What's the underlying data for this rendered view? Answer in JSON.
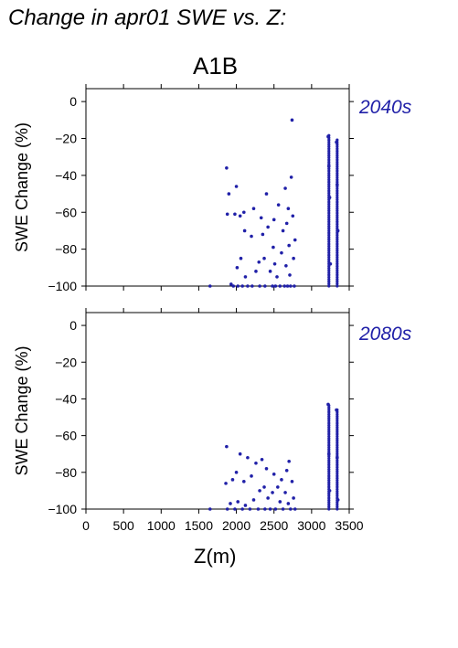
{
  "page_title": "Change in apr01 SWE vs. Z:",
  "scenario": "A1B",
  "colors": {
    "points": "#2020a8",
    "label": "#2020a8",
    "axis": "#000000"
  },
  "chart_data": [
    {
      "type": "scatter",
      "title": "2040s",
      "xlabel": "Z(m)",
      "ylabel": "SWE Change (%)",
      "xlim": [
        0,
        3500
      ],
      "ylim": [
        -100,
        7
      ],
      "xticks": [
        0,
        500,
        1000,
        1500,
        2000,
        2500,
        3000,
        3500
      ],
      "yticks": [
        0,
        -20,
        -40,
        -60,
        -80,
        -100
      ],
      "grid": false,
      "x": [
        1650,
        1870,
        1880,
        1900,
        1930,
        1960,
        1980,
        2000,
        2010,
        2020,
        2050,
        2060,
        2080,
        2100,
        2110,
        2120,
        2150,
        2200,
        2210,
        2230,
        2260,
        2300,
        2310,
        2330,
        2350,
        2370,
        2380,
        2400,
        2420,
        2450,
        2480,
        2490,
        2500,
        2510,
        2520,
        2540,
        2560,
        2580,
        2600,
        2620,
        2640,
        2650,
        2660,
        2670,
        2680,
        2690,
        2700,
        2710,
        2720,
        2730,
        2740,
        2750,
        2760,
        2770,
        2780,
        3220,
        3230,
        3240,
        3250,
        3330,
        3340,
        3350
      ],
      "y": [
        -100,
        -36,
        -61,
        -50,
        -99,
        -100,
        -61,
        -46,
        -90,
        -100,
        -62,
        -85,
        -100,
        -60,
        -70,
        -95,
        -100,
        -73,
        -100,
        -58,
        -92,
        -87,
        -100,
        -63,
        -72,
        -85,
        -100,
        -50,
        -68,
        -92,
        -100,
        -79,
        -64,
        -88,
        -100,
        -95,
        -56,
        -100,
        -82,
        -70,
        -100,
        -47,
        -89,
        -66,
        -100,
        -58,
        -78,
        -94,
        -100,
        -41,
        -10,
        -62,
        -85,
        -100,
        -75,
        -19,
        -35,
        -52,
        -88,
        -22,
        -45,
        -70
      ],
      "columns": [
        {
          "x": 3230,
          "ymin": -100,
          "ymax": -18
        },
        {
          "x": 3340,
          "ymin": -100,
          "ymax": -20
        }
      ]
    },
    {
      "type": "scatter",
      "title": "2080s",
      "xlabel": "Z(m)",
      "ylabel": "SWE Change (%)",
      "xlim": [
        0,
        3500
      ],
      "ylim": [
        -100,
        7
      ],
      "xticks": [
        0,
        500,
        1000,
        1500,
        2000,
        2500,
        3000,
        3500
      ],
      "yticks": [
        0,
        -20,
        -40,
        -60,
        -80,
        -100
      ],
      "grid": false,
      "x": [
        1650,
        1860,
        1870,
        1880,
        1920,
        1950,
        1980,
        2000,
        2020,
        2050,
        2080,
        2100,
        2120,
        2150,
        2180,
        2200,
        2230,
        2260,
        2290,
        2310,
        2340,
        2370,
        2380,
        2400,
        2420,
        2450,
        2480,
        2500,
        2520,
        2550,
        2580,
        2600,
        2620,
        2650,
        2670,
        2690,
        2700,
        2720,
        2740,
        2760,
        2780,
        3220,
        3230,
        3240,
        3330,
        3340,
        3350
      ],
      "y": [
        -100,
        -86,
        -66,
        -100,
        -97,
        -84,
        -100,
        -80,
        -96,
        -70,
        -100,
        -85,
        -98,
        -72,
        -100,
        -82,
        -95,
        -75,
        -100,
        -90,
        -73,
        -88,
        -100,
        -78,
        -94,
        -100,
        -91,
        -81,
        -100,
        -88,
        -96,
        -84,
        -100,
        -91,
        -79,
        -97,
        -74,
        -100,
        -85,
        -94,
        -100,
        -43,
        -70,
        -90,
        -46,
        -72,
        -95
      ],
      "columns": [
        {
          "x": 3230,
          "ymin": -100,
          "ymax": -43
        },
        {
          "x": 3340,
          "ymin": -100,
          "ymax": -46
        }
      ]
    }
  ]
}
